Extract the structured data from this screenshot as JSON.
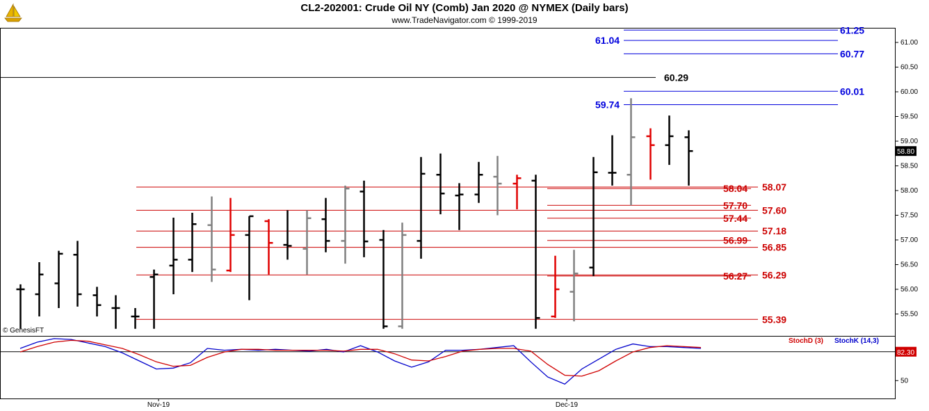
{
  "header": {
    "title": "CL2-202001:  Crude Oil NY (Comb) Jan 2020 @ NYMEX  (Daily bars)",
    "subtitle": "www.TradeNavigator.com © 1999-2019",
    "logo_icon": "sailboat-logo-icon"
  },
  "watermark": "© GenesisFT",
  "chart_data": [
    {
      "type": "ohlc",
      "title": "CL2-202001:  Crude Oil NY (Comb) Jan 2020 @ NYMEX  (Daily bars)",
      "ylim": [
        55.2,
        61.4
      ],
      "yticks": [
        "55.50",
        "56.00",
        "56.50",
        "57.00",
        "57.50",
        "58.00",
        "58.50",
        "59.00",
        "59.50",
        "60.00",
        "60.50",
        "61.00"
      ],
      "xtick_labels": [
        "Nov-19",
        "Dec-19"
      ],
      "last_price": "58.80",
      "colors": {
        "up": "#000000",
        "down_gray": "#808080",
        "signal_red": "#e00000",
        "levels_red": "#d00000",
        "levels_blue": "#0000cc"
      },
      "bars": [
        {
          "h": 56.1,
          "l": 55.2,
          "o": 56.0,
          "c": 56.0,
          "color": "black"
        },
        {
          "h": 56.55,
          "l": 55.45,
          "o": 55.9,
          "c": 56.3,
          "color": "black"
        },
        {
          "h": 56.78,
          "l": 55.62,
          "o": 56.12,
          "c": 56.72,
          "color": "black"
        },
        {
          "h": 56.98,
          "l": 55.65,
          "o": 56.7,
          "c": 55.9,
          "color": "black"
        },
        {
          "h": 56.05,
          "l": 55.45,
          "o": 55.88,
          "c": 55.68,
          "color": "black"
        },
        {
          "h": 55.88,
          "l": 55.2,
          "o": 55.62,
          "c": 55.62,
          "color": "black"
        },
        {
          "h": 55.62,
          "l": 55.2,
          "o": 55.45,
          "c": 55.45,
          "color": "black"
        },
        {
          "h": 56.4,
          "l": 55.2,
          "o": 56.25,
          "c": 56.3,
          "color": "black"
        },
        {
          "h": 57.45,
          "l": 55.9,
          "o": 56.48,
          "c": 56.6,
          "color": "black"
        },
        {
          "h": 57.55,
          "l": 56.35,
          "o": 56.6,
          "c": 57.32,
          "color": "black"
        },
        {
          "h": 57.88,
          "l": 56.15,
          "o": 57.3,
          "c": 56.4,
          "color": "gray"
        },
        {
          "h": 57.85,
          "l": 56.35,
          "o": 56.38,
          "c": 57.1,
          "color": "red"
        },
        {
          "h": 57.48,
          "l": 55.78,
          "o": 57.1,
          "c": 57.48,
          "color": "black"
        },
        {
          "h": 57.42,
          "l": 56.3,
          "o": 57.38,
          "c": 56.94,
          "color": "red"
        },
        {
          "h": 57.6,
          "l": 56.6,
          "o": 56.9,
          "c": 56.88,
          "color": "black"
        },
        {
          "h": 57.6,
          "l": 56.3,
          "o": 56.82,
          "c": 57.44,
          "color": "gray"
        },
        {
          "h": 57.85,
          "l": 56.75,
          "o": 57.42,
          "c": 56.98,
          "color": "black"
        },
        {
          "h": 58.1,
          "l": 56.52,
          "o": 56.98,
          "c": 58.04,
          "color": "gray"
        },
        {
          "h": 58.2,
          "l": 56.65,
          "o": 57.98,
          "c": 56.97,
          "color": "black"
        },
        {
          "h": 57.2,
          "l": 55.2,
          "o": 57.0,
          "c": 55.25,
          "color": "black"
        },
        {
          "h": 57.35,
          "l": 55.2,
          "o": 55.25,
          "c": 57.1,
          "color": "gray"
        },
        {
          "h": 58.68,
          "l": 56.62,
          "o": 56.98,
          "c": 58.34,
          "color": "black"
        },
        {
          "h": 58.75,
          "l": 57.52,
          "o": 58.32,
          "c": 57.94,
          "color": "black"
        },
        {
          "h": 58.15,
          "l": 57.2,
          "o": 57.9,
          "c": 57.92,
          "color": "black"
        },
        {
          "h": 58.58,
          "l": 57.75,
          "o": 57.92,
          "c": 58.32,
          "color": "black"
        },
        {
          "h": 58.7,
          "l": 57.5,
          "o": 58.28,
          "c": 58.14,
          "color": "gray"
        },
        {
          "h": 58.32,
          "l": 57.62,
          "o": 58.14,
          "c": 58.25,
          "color": "red"
        },
        {
          "h": 58.32,
          "l": 55.2,
          "o": 58.2,
          "c": 55.42,
          "color": "black"
        },
        {
          "h": 56.68,
          "l": 55.42,
          "o": 55.45,
          "c": 56.0,
          "color": "red"
        },
        {
          "h": 56.8,
          "l": 55.35,
          "o": 55.95,
          "c": 56.32,
          "color": "gray"
        },
        {
          "h": 58.68,
          "l": 56.27,
          "o": 56.44,
          "c": 58.37,
          "color": "black"
        },
        {
          "h": 59.12,
          "l": 58.1,
          "o": 58.36,
          "c": 58.36,
          "color": "black"
        },
        {
          "h": 59.87,
          "l": 57.7,
          "o": 58.32,
          "c": 59.08,
          "color": "gray"
        },
        {
          "h": 59.26,
          "l": 58.22,
          "o": 59.1,
          "c": 58.92,
          "color": "red"
        },
        {
          "h": 59.52,
          "l": 58.52,
          "o": 58.92,
          "c": 59.1,
          "color": "black"
        },
        {
          "h": 59.22,
          "l": 58.1,
          "o": 59.08,
          "c": 58.8,
          "color": "black"
        }
      ],
      "levels": [
        {
          "value": 61.25,
          "label": "61.25",
          "color": "blue",
          "side": "right"
        },
        {
          "value": 61.04,
          "label": "61.04",
          "color": "blue",
          "side": "left"
        },
        {
          "value": 60.77,
          "label": "60.77",
          "color": "blue",
          "side": "right"
        },
        {
          "value": 60.29,
          "label": "60.29",
          "color": "black",
          "side": "right"
        },
        {
          "value": 60.01,
          "label": "60.01",
          "color": "blue",
          "side": "right"
        },
        {
          "value": 59.74,
          "label": "59.74",
          "color": "blue",
          "side": "left"
        },
        {
          "value": 58.07,
          "label": "58.07",
          "color": "red",
          "side": "right"
        },
        {
          "value": 58.04,
          "label": "58.04",
          "color": "red",
          "side": "right"
        },
        {
          "value": 57.7,
          "label": "57.70",
          "color": "red",
          "side": "right"
        },
        {
          "value": 57.6,
          "label": "57.60",
          "color": "red",
          "side": "right"
        },
        {
          "value": 57.44,
          "label": "57.44",
          "color": "red",
          "side": "right"
        },
        {
          "value": 57.18,
          "label": "57.18",
          "color": "red",
          "side": "right"
        },
        {
          "value": 56.99,
          "label": "56.99",
          "color": "red",
          "side": "right"
        },
        {
          "value": 56.85,
          "label": "56.85",
          "color": "red",
          "side": "right"
        },
        {
          "value": 56.29,
          "label": "56.29",
          "color": "red",
          "side": "right"
        },
        {
          "value": 56.27,
          "label": "56.27",
          "color": "red",
          "side": "right"
        },
        {
          "value": 55.39,
          "label": "55.39",
          "color": "red",
          "side": "right"
        }
      ]
    },
    {
      "type": "line",
      "ylim": [
        30,
        100
      ],
      "yticks": [
        "50"
      ],
      "reference_line": 82.3,
      "last_value_label": "82.30",
      "series": [
        {
          "name": "StochK (14,3)",
          "color": "#0000cc",
          "values": [
            86,
            93,
            97,
            96,
            92,
            88,
            81,
            72,
            63,
            64,
            70,
            86,
            84,
            85,
            84,
            85,
            84,
            83,
            85,
            82,
            89,
            82,
            72,
            65,
            71,
            84,
            84,
            85,
            87,
            89,
            71,
            54,
            46,
            63,
            74,
            85,
            91,
            88,
            88,
            87,
            86
          ]
        },
        {
          "name": "StochD (3)",
          "color": "#d00000",
          "values": [
            82,
            88,
            93,
            95,
            94,
            90,
            86,
            79,
            71,
            66,
            67,
            76,
            82,
            85,
            85,
            84,
            84,
            84,
            84,
            83,
            85,
            85,
            80,
            73,
            72,
            77,
            83,
            85,
            86,
            86,
            83,
            68,
            56,
            55,
            61,
            72,
            82,
            87,
            89,
            88,
            87
          ]
        }
      ]
    }
  ]
}
